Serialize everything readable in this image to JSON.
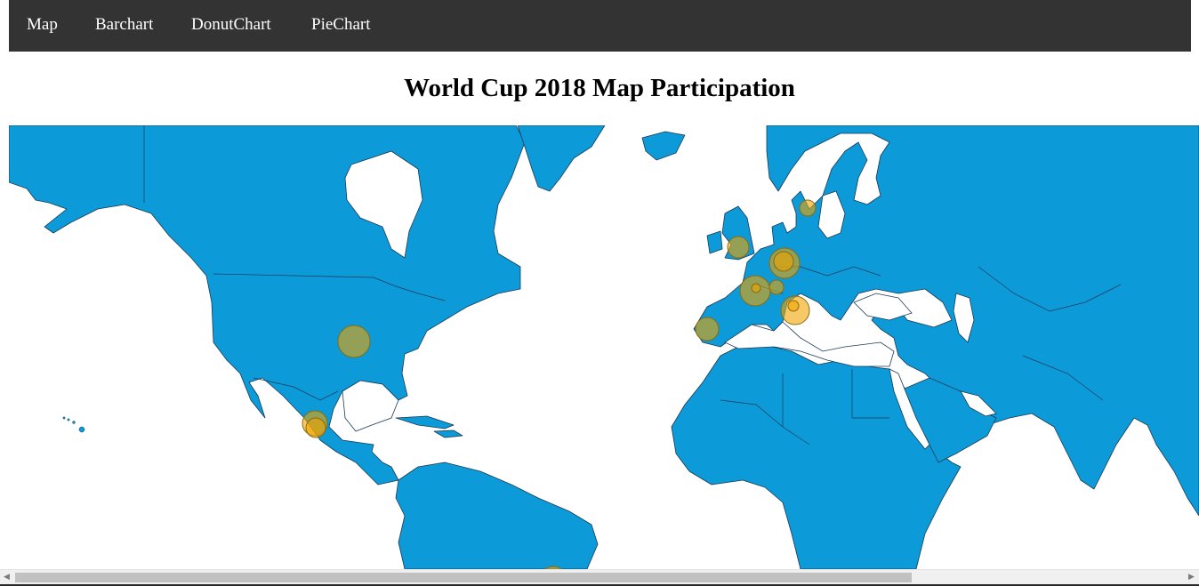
{
  "nav": {
    "items": [
      {
        "label": "Map"
      },
      {
        "label": "Barchart"
      },
      {
        "label": "DonutChart"
      },
      {
        "label": "PieChart"
      }
    ]
  },
  "page": {
    "title": "World Cup 2018 Map Participation"
  },
  "map": {
    "land_color": "#0c9ad8",
    "border_color": "#1a3a55",
    "water_color": "#ffffff",
    "bubble_color": "#f0a500",
    "icons": {
      "scroll_left": "left-arrow-icon",
      "scroll_right": "right-arrow-icon"
    }
  }
}
